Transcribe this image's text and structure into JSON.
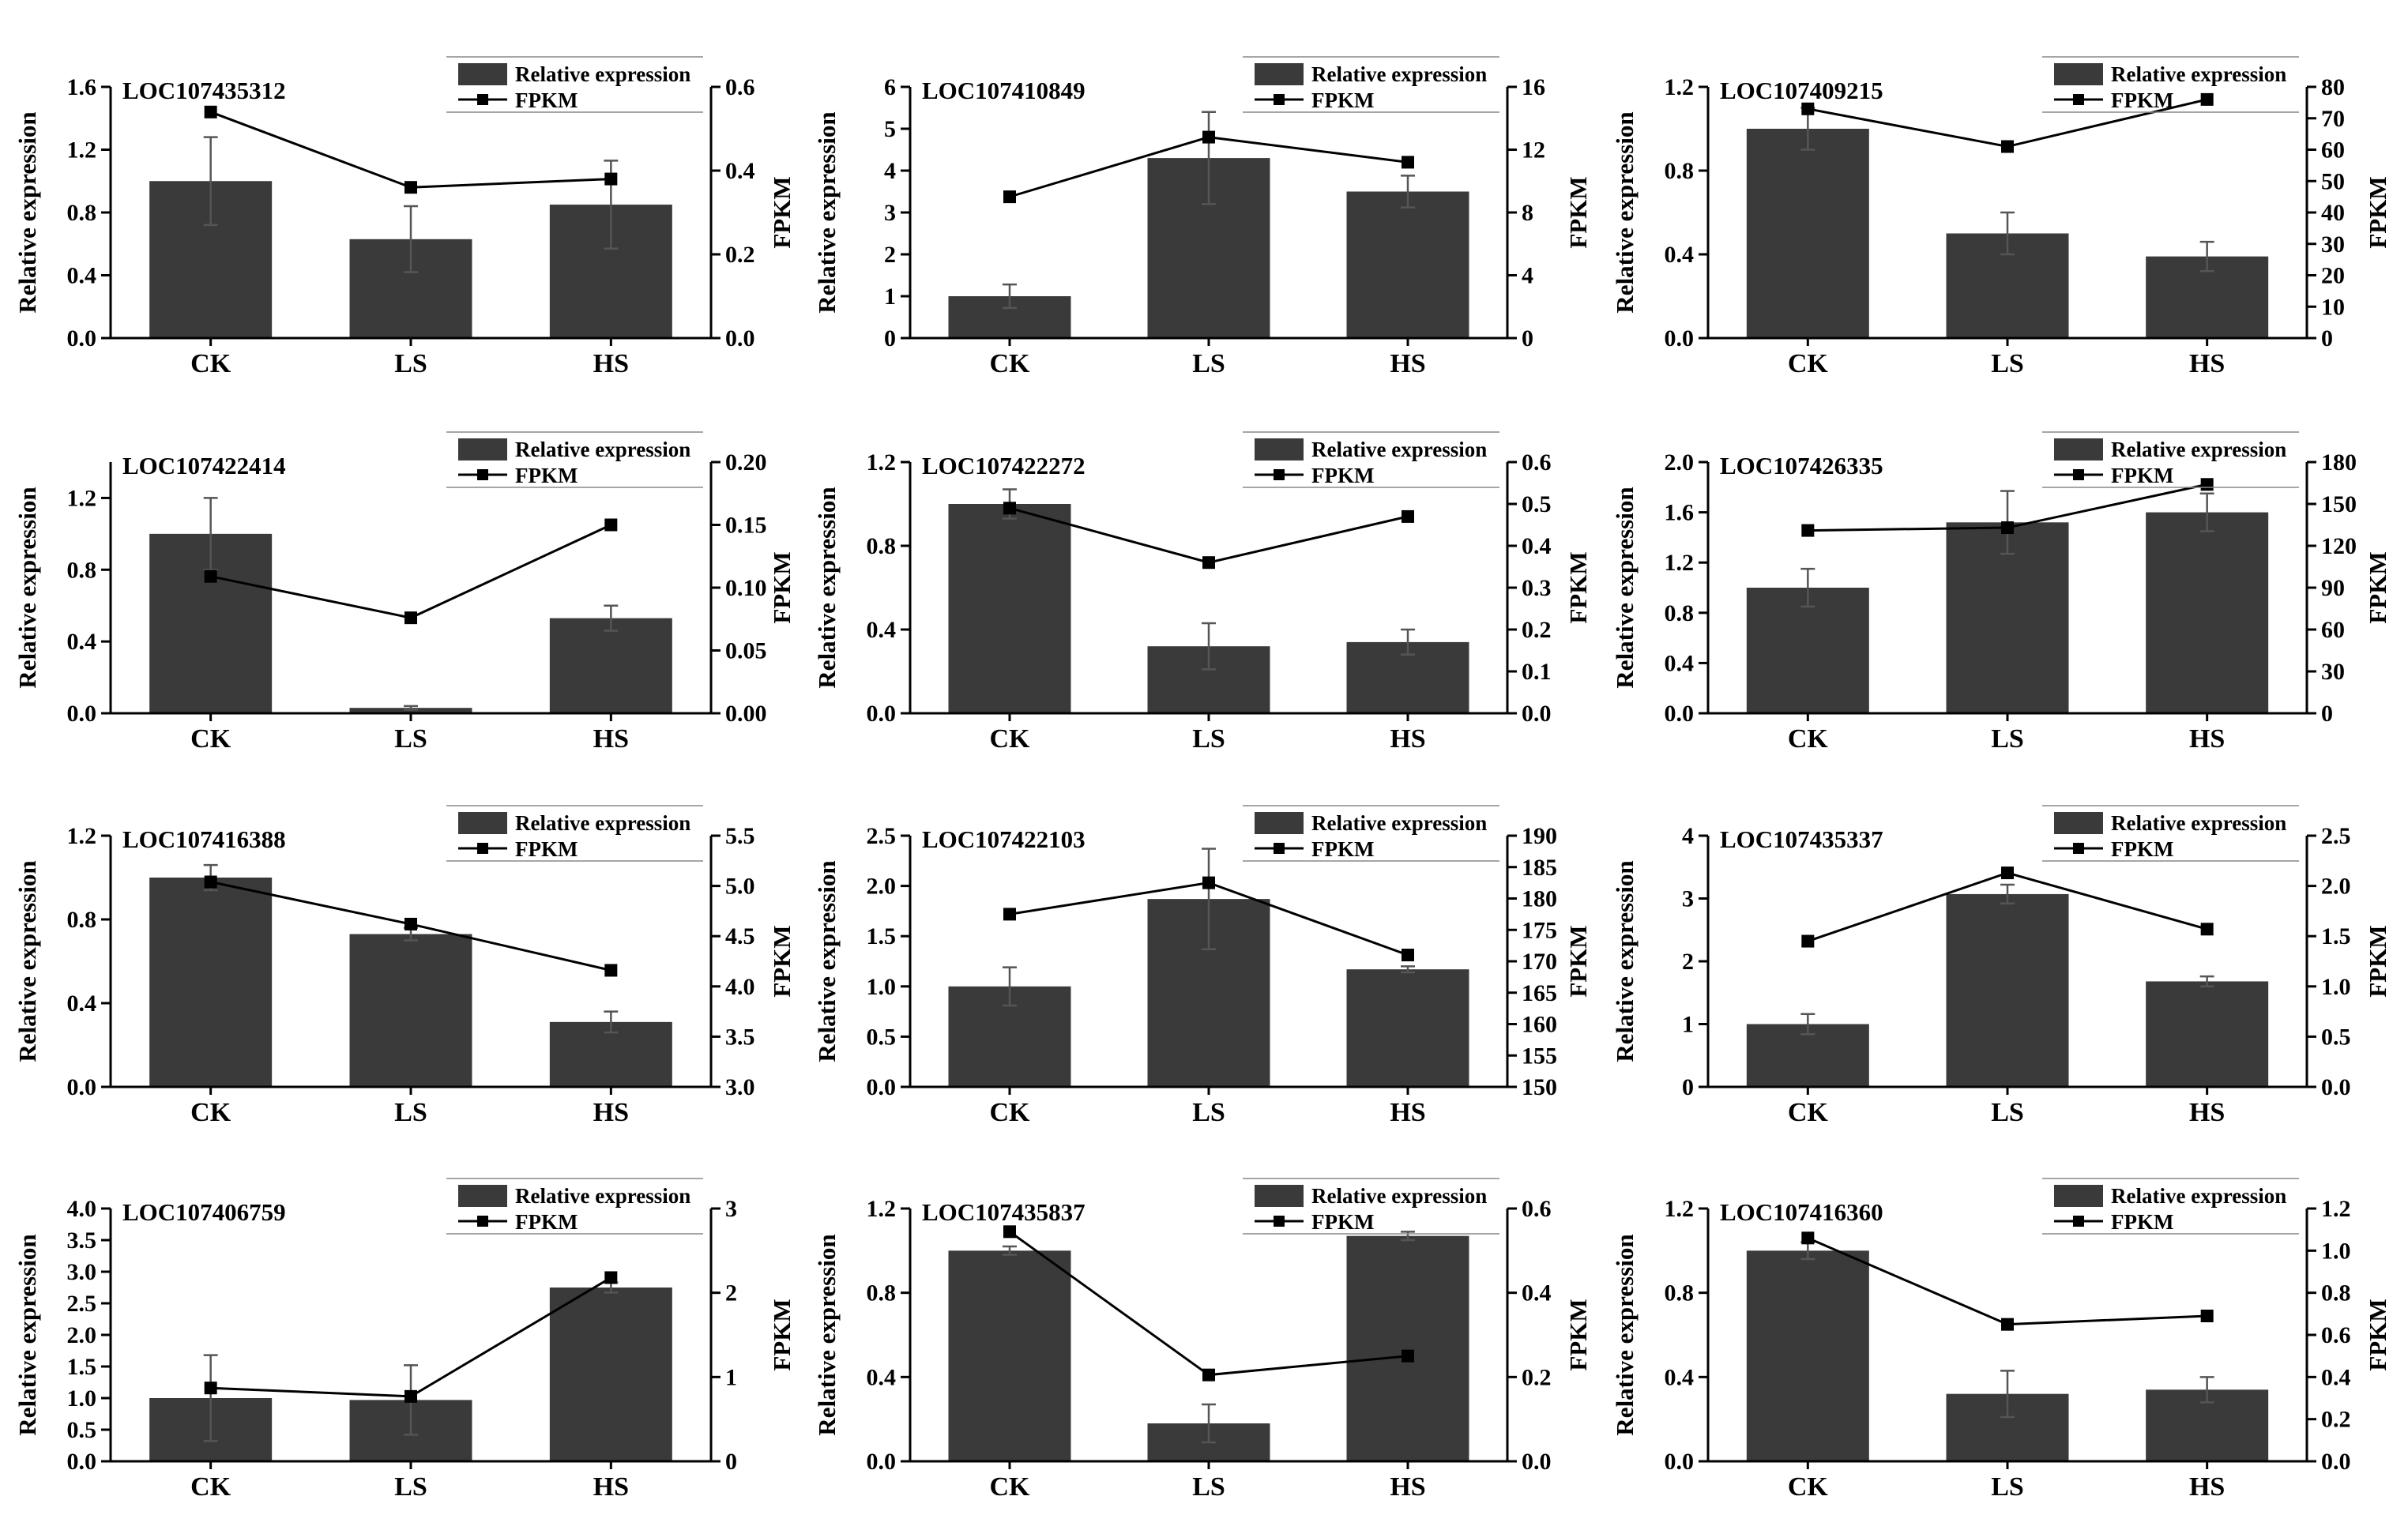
{
  "figure": {
    "bar_color": "#3a3a3a",
    "line_color": "#000000",
    "legend_bar_label": "Relative expression",
    "legend_line_label": "FPKM",
    "y_left_label": "Relative expression",
    "y_right_label": "FPKM"
  },
  "chart_data": [
    {
      "type": "bar+line",
      "title": "LOC107435312",
      "categories": [
        "CK",
        "LS",
        "HS"
      ],
      "bars": {
        "name": "Relative expression",
        "values": [
          1.0,
          0.63,
          0.85
        ],
        "errors": [
          0.28,
          0.21,
          0.28
        ]
      },
      "line": {
        "name": "FPKM",
        "values": [
          0.54,
          0.36,
          0.38
        ]
      },
      "ylim_left": [
        0,
        1.6
      ],
      "yticks_left": [
        "0.0",
        "0.4",
        "0.8",
        "1.2",
        "1.6"
      ],
      "ylim_right": [
        0,
        0.6
      ],
      "yticks_right": [
        "0.0",
        "0.2",
        "0.4",
        "0.6"
      ],
      "legend": "top-right"
    },
    {
      "type": "bar+line",
      "title": "LOC107410849",
      "categories": [
        "CK",
        "LS",
        "HS"
      ],
      "bars": {
        "name": "Relative expression",
        "values": [
          1.0,
          4.3,
          3.5
        ],
        "errors": [
          0.28,
          1.1,
          0.38
        ]
      },
      "line": {
        "name": "FPKM",
        "values": [
          9.0,
          12.8,
          11.2
        ]
      },
      "ylim_left": [
        0,
        6
      ],
      "yticks_left": [
        "0",
        "1",
        "2",
        "3",
        "4",
        "5",
        "6"
      ],
      "ylim_right": [
        0,
        16
      ],
      "yticks_right": [
        "0",
        "4",
        "8",
        "12",
        "16"
      ],
      "legend": "top-right"
    },
    {
      "type": "bar+line",
      "title": "LOC107409215",
      "categories": [
        "CK",
        "LS",
        "HS"
      ],
      "bars": {
        "name": "Relative expression",
        "values": [
          1.0,
          0.5,
          0.39
        ],
        "errors": [
          0.1,
          0.1,
          0.07
        ]
      },
      "line": {
        "name": "FPKM",
        "values": [
          73,
          61,
          76
        ]
      },
      "ylim_left": [
        0,
        1.2
      ],
      "yticks_left": [
        "0.0",
        "0.4",
        "0.8",
        "1.2"
      ],
      "ylim_right": [
        0,
        80
      ],
      "yticks_right": [
        "0",
        "10",
        "20",
        "30",
        "40",
        "50",
        "60",
        "70",
        "80"
      ],
      "legend": "top-right"
    },
    {
      "type": "bar+line",
      "title": "LOC107422414",
      "categories": [
        "CK",
        "LS",
        "HS"
      ],
      "bars": {
        "name": "Relative expression",
        "values": [
          1.0,
          0.03,
          0.53
        ],
        "errors": [
          0.2,
          0.01,
          0.07
        ]
      },
      "line": {
        "name": "FPKM",
        "values": [
          0.109,
          0.076,
          0.15
        ]
      },
      "ylim_left": [
        0,
        1.4
      ],
      "yticks_left": [
        "0.0",
        "0.4",
        "0.8",
        "1.2"
      ],
      "ylim_right": [
        0,
        0.2
      ],
      "yticks_right": [
        "0.00",
        "0.05",
        "0.10",
        "0.15",
        "0.20"
      ],
      "legend": "top-right"
    },
    {
      "type": "bar+line",
      "title": "LOC107422272",
      "categories": [
        "CK",
        "LS",
        "HS"
      ],
      "bars": {
        "name": "Relative expression",
        "values": [
          1.0,
          0.32,
          0.34
        ],
        "errors": [
          0.07,
          0.11,
          0.06
        ]
      },
      "line": {
        "name": "FPKM",
        "values": [
          0.49,
          0.36,
          0.47
        ]
      },
      "ylim_left": [
        0,
        1.2
      ],
      "yticks_left": [
        "0.0",
        "0.4",
        "0.8",
        "1.2"
      ],
      "ylim_right": [
        0,
        0.6
      ],
      "yticks_right": [
        "0.0",
        "0.1",
        "0.2",
        "0.3",
        "0.4",
        "0.5",
        "0.6"
      ],
      "legend": "top-right"
    },
    {
      "type": "bar+line",
      "title": "LOC107426335",
      "categories": [
        "CK",
        "LS",
        "HS"
      ],
      "bars": {
        "name": "Relative expression",
        "values": [
          1.0,
          1.52,
          1.6
        ],
        "errors": [
          0.15,
          0.25,
          0.15
        ]
      },
      "line": {
        "name": "FPKM",
        "values": [
          131,
          133,
          164
        ]
      },
      "ylim_left": [
        0,
        2.0
      ],
      "yticks_left": [
        "0.0",
        "0.4",
        "0.8",
        "1.2",
        "1.6",
        "2.0"
      ],
      "ylim_right": [
        0,
        180
      ],
      "yticks_right": [
        "0",
        "30",
        "60",
        "90",
        "120",
        "150",
        "180"
      ],
      "legend": "top-right"
    },
    {
      "type": "bar+line",
      "title": "LOC107416388",
      "categories": [
        "CK",
        "LS",
        "HS"
      ],
      "bars": {
        "name": "Relative expression",
        "values": [
          1.0,
          0.73,
          0.31
        ],
        "errors": [
          0.06,
          0.03,
          0.05
        ]
      },
      "line": {
        "name": "FPKM",
        "values": [
          5.04,
          4.62,
          4.16
        ]
      },
      "ylim_left": [
        0,
        1.2
      ],
      "yticks_left": [
        "0.0",
        "0.4",
        "0.8",
        "1.2"
      ],
      "ylim_right": [
        3.0,
        5.5
      ],
      "yticks_right": [
        "3.0",
        "3.5",
        "4.0",
        "4.5",
        "5.0",
        "5.5"
      ],
      "legend": "top-right"
    },
    {
      "type": "bar+line",
      "title": "LOC107422103",
      "categories": [
        "CK",
        "LS",
        "HS"
      ],
      "bars": {
        "name": "Relative expression",
        "values": [
          1.0,
          1.87,
          1.17
        ],
        "errors": [
          0.19,
          0.5,
          0.03
        ]
      },
      "line": {
        "name": "FPKM",
        "values": [
          177.5,
          182.5,
          171
        ]
      },
      "ylim_left": [
        0,
        2.5
      ],
      "yticks_left": [
        "0.0",
        "0.5",
        "1.0",
        "1.5",
        "2.0",
        "2.5"
      ],
      "ylim_right": [
        150,
        190
      ],
      "yticks_right": [
        "150",
        "155",
        "160",
        "165",
        "170",
        "175",
        "180",
        "185",
        "190"
      ],
      "legend": "top-right"
    },
    {
      "type": "bar+line",
      "title": "LOC107435337",
      "categories": [
        "CK",
        "LS",
        "HS"
      ],
      "bars": {
        "name": "Relative expression",
        "values": [
          1.0,
          3.07,
          1.68
        ],
        "errors": [
          0.16,
          0.15,
          0.08
        ]
      },
      "line": {
        "name": "FPKM",
        "values": [
          1.45,
          2.13,
          1.57
        ]
      },
      "ylim_left": [
        0,
        4
      ],
      "yticks_left": [
        "0",
        "1",
        "2",
        "3",
        "4"
      ],
      "ylim_right": [
        0,
        2.5
      ],
      "yticks_right": [
        "0.0",
        "0.5",
        "1.0",
        "1.5",
        "2.0",
        "2.5"
      ],
      "legend": "top-right"
    },
    {
      "type": "bar+line",
      "title": "LOC107406759",
      "categories": [
        "CK",
        "LS",
        "HS"
      ],
      "bars": {
        "name": "Relative expression",
        "values": [
          1.0,
          0.97,
          2.75
        ],
        "errors": [
          0.68,
          0.55,
          0.08
        ]
      },
      "line": {
        "name": "FPKM",
        "values": [
          0.87,
          0.77,
          2.18
        ]
      },
      "ylim_left": [
        0,
        4.0
      ],
      "yticks_left": [
        "0.0",
        "0.5",
        "1.0",
        "1.5",
        "2.0",
        "2.5",
        "3.0",
        "3.5",
        "4.0"
      ],
      "ylim_right": [
        0,
        3
      ],
      "yticks_right": [
        "0",
        "1",
        "2",
        "3"
      ],
      "legend": "top-right"
    },
    {
      "type": "bar+line",
      "title": "LOC107435837",
      "categories": [
        "CK",
        "LS",
        "HS"
      ],
      "bars": {
        "name": "Relative expression",
        "values": [
          1.0,
          0.18,
          1.07
        ],
        "errors": [
          0.02,
          0.09,
          0.02
        ]
      },
      "line": {
        "name": "FPKM",
        "values": [
          0.545,
          0.205,
          0.25
        ]
      },
      "ylim_left": [
        0,
        1.2
      ],
      "yticks_left": [
        "0.0",
        "0.4",
        "0.8",
        "1.2"
      ],
      "ylim_right": [
        0,
        0.6
      ],
      "yticks_right": [
        "0.0",
        "0.2",
        "0.4",
        "0.6"
      ],
      "legend": "top-right"
    },
    {
      "type": "bar+line",
      "title": "LOC107416360",
      "categories": [
        "CK",
        "LS",
        "HS"
      ],
      "bars": {
        "name": "Relative expression",
        "values": [
          1.0,
          0.32,
          0.34
        ],
        "errors": [
          0.04,
          0.11,
          0.06
        ]
      },
      "line": {
        "name": "FPKM",
        "values": [
          1.06,
          0.65,
          0.69
        ]
      },
      "ylim_left": [
        0,
        1.2
      ],
      "yticks_left": [
        "0.0",
        "0.4",
        "0.8",
        "1.2"
      ],
      "ylim_right": [
        0,
        1.2
      ],
      "yticks_right": [
        "0.0",
        "0.2",
        "0.4",
        "0.6",
        "0.8",
        "1.0",
        "1.2"
      ],
      "legend": "top-right"
    }
  ]
}
